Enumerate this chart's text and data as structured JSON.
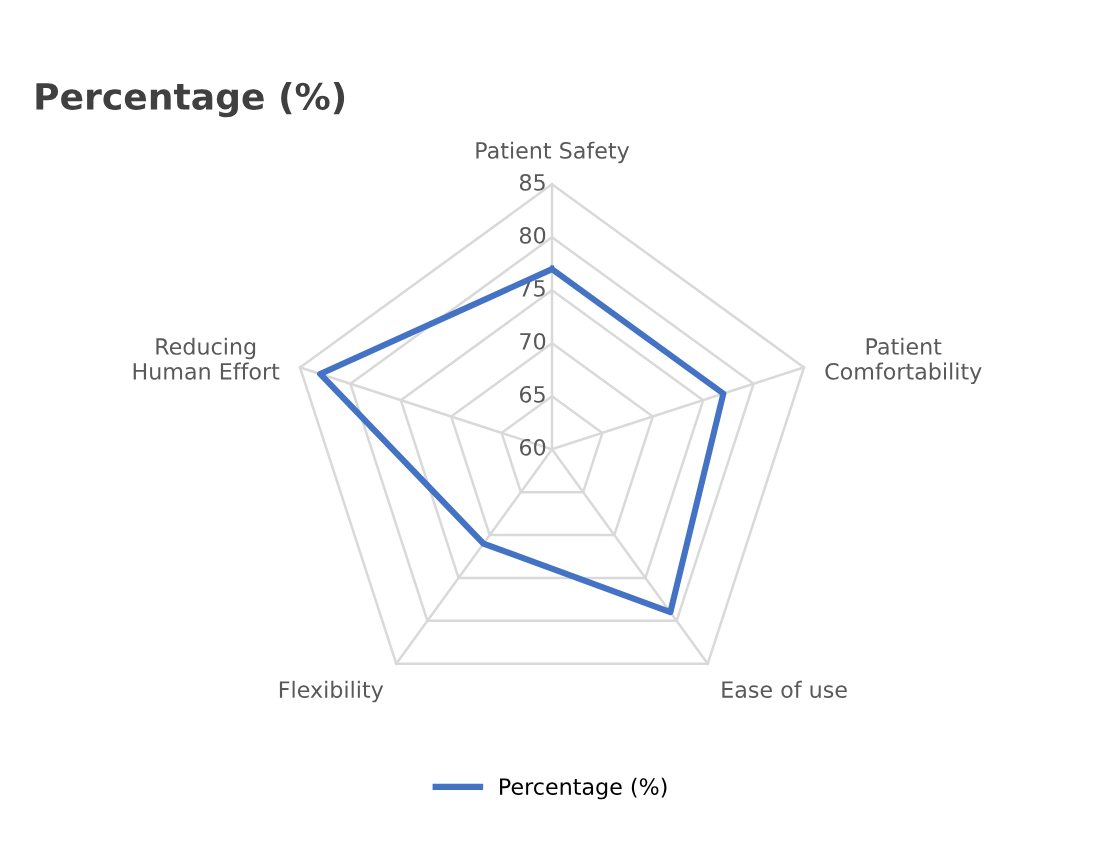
{
  "chart_data": {
    "type": "radar",
    "title": "Percentage (%)",
    "categories": [
      "Patient Safety",
      "Patient\nComfortability",
      "Ease of use",
      "Flexibility",
      "Reducing\nHuman Effort"
    ],
    "series": [
      {
        "name": "Percentage (%)",
        "color": "#4472c4",
        "values": [
          77,
          77,
          79,
          71,
          83
        ]
      }
    ],
    "ylim": [
      60,
      85
    ],
    "yticks": [
      60,
      65,
      70,
      75,
      80,
      85
    ],
    "grid": true,
    "legend": "bottom",
    "marker": "none",
    "line_style": "solid"
  }
}
